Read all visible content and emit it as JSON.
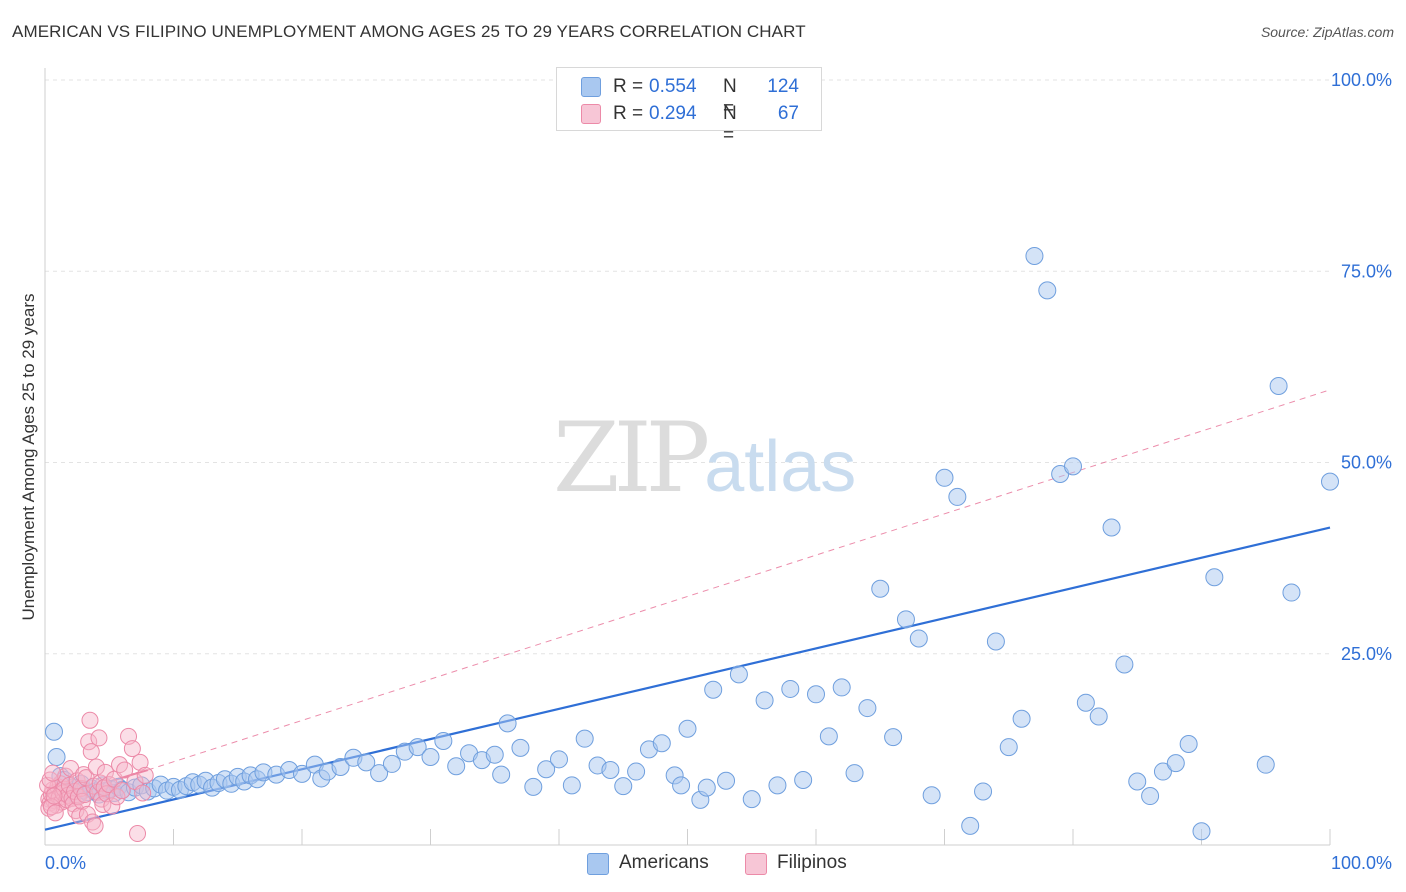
{
  "header": {
    "title": "AMERICAN VS FILIPINO UNEMPLOYMENT AMONG AGES 25 TO 29 YEARS CORRELATION CHART",
    "source": "Source: ZipAtlas.com"
  },
  "watermark": {
    "zip": "ZIP",
    "atlas": "atlas"
  },
  "stats_legend": {
    "rows": [
      {
        "r_label": "R =",
        "r_value": "0.554",
        "n_label": "N =",
        "n_value": "124"
      },
      {
        "r_label": "R =",
        "r_value": "0.294",
        "n_label": "N =",
        "n_value": "67"
      }
    ]
  },
  "colors": {
    "americans_fill": "#a9c8f0",
    "americans_stroke": "#6f9fde",
    "americans_line": "#2f6fd6",
    "filipinos_fill": "#f7b6c9",
    "filipinos_stroke": "#ec8aa8",
    "filipinos_line": "#e45d88",
    "grid": "#e3e3e3",
    "tick_text": "#2f6fd6"
  },
  "chart_data": {
    "type": "scatter",
    "title": "AMERICAN VS FILIPINO UNEMPLOYMENT AMONG AGES 25 TO 29 YEARS CORRELATION CHART",
    "xlabel": "",
    "ylabel": "Unemployment Among Ages 25 to 29 years",
    "xlim": [
      0,
      100
    ],
    "ylim": [
      0,
      100
    ],
    "x_tick_labels": [
      "0.0%",
      "100.0%"
    ],
    "y_ticks": [
      25,
      50,
      75,
      100
    ],
    "y_tick_labels": [
      "25.0%",
      "50.0%",
      "75.0%",
      "100.0%"
    ],
    "grid": true,
    "legend_position": "bottom",
    "series": [
      {
        "name": "Americans",
        "r": 0.554,
        "n": 124,
        "trend": {
          "x": [
            0,
            100
          ],
          "y": [
            2.0,
            41.5
          ]
        },
        "points": [
          [
            0.7,
            14.8
          ],
          [
            0.9,
            11.5
          ],
          [
            1.2,
            9.0
          ],
          [
            1.5,
            8.5
          ],
          [
            1.8,
            7.0
          ],
          [
            2.0,
            6.8
          ],
          [
            2.2,
            7.5
          ],
          [
            2.5,
            6.5
          ],
          [
            2.8,
            8.0
          ],
          [
            3.0,
            7.2
          ],
          [
            3.3,
            6.9
          ],
          [
            3.6,
            7.4
          ],
          [
            3.9,
            7.0
          ],
          [
            4.2,
            6.6
          ],
          [
            4.5,
            7.8
          ],
          [
            4.8,
            7.1
          ],
          [
            5.1,
            7.3
          ],
          [
            5.4,
            6.8
          ],
          [
            5.7,
            7.6
          ],
          [
            6.0,
            7.2
          ],
          [
            6.5,
            6.9
          ],
          [
            7.0,
            7.5
          ],
          [
            7.5,
            7.8
          ],
          [
            8.0,
            7.0
          ],
          [
            8.5,
            7.4
          ],
          [
            9.0,
            7.9
          ],
          [
            9.5,
            7.1
          ],
          [
            10.0,
            7.6
          ],
          [
            10.5,
            7.2
          ],
          [
            11.0,
            7.7
          ],
          [
            11.5,
            8.2
          ],
          [
            12.0,
            7.9
          ],
          [
            12.5,
            8.4
          ],
          [
            13.0,
            7.5
          ],
          [
            13.5,
            8.1
          ],
          [
            14.0,
            8.6
          ],
          [
            14.5,
            8.0
          ],
          [
            15.0,
            8.9
          ],
          [
            15.5,
            8.3
          ],
          [
            16.0,
            9.1
          ],
          [
            16.5,
            8.6
          ],
          [
            17.0,
            9.5
          ],
          [
            18.0,
            9.2
          ],
          [
            19.0,
            9.8
          ],
          [
            20.0,
            9.3
          ],
          [
            21.0,
            10.5
          ],
          [
            21.5,
            8.7
          ],
          [
            22.0,
            9.6
          ],
          [
            23.0,
            10.2
          ],
          [
            24.0,
            11.4
          ],
          [
            25.0,
            10.8
          ],
          [
            26.0,
            9.4
          ],
          [
            27.0,
            10.6
          ],
          [
            28.0,
            12.2
          ],
          [
            29.0,
            12.8
          ],
          [
            30.0,
            11.5
          ],
          [
            31.0,
            13.6
          ],
          [
            32.0,
            10.3
          ],
          [
            33.0,
            12.0
          ],
          [
            34.0,
            11.1
          ],
          [
            35.0,
            11.8
          ],
          [
            35.5,
            9.2
          ],
          [
            36.0,
            15.9
          ],
          [
            37.0,
            12.7
          ],
          [
            38.0,
            7.6
          ],
          [
            39.0,
            9.9
          ],
          [
            40.0,
            11.2
          ],
          [
            41.0,
            7.8
          ],
          [
            42.0,
            13.9
          ],
          [
            43.0,
            10.4
          ],
          [
            44.0,
            9.8
          ],
          [
            45.0,
            7.7
          ],
          [
            46.0,
            9.6
          ],
          [
            47.0,
            12.5
          ],
          [
            48.0,
            13.3
          ],
          [
            49.0,
            9.1
          ],
          [
            49.5,
            7.8
          ],
          [
            50.0,
            15.2
          ],
          [
            51.0,
            5.9
          ],
          [
            51.5,
            7.5
          ],
          [
            52.0,
            20.3
          ],
          [
            53.0,
            8.4
          ],
          [
            54.0,
            22.3
          ],
          [
            55.0,
            6.0
          ],
          [
            56.0,
            18.9
          ],
          [
            57.0,
            7.8
          ],
          [
            58.0,
            20.4
          ],
          [
            59.0,
            8.5
          ],
          [
            60.0,
            19.7
          ],
          [
            61.0,
            14.2
          ],
          [
            62.0,
            20.6
          ],
          [
            63.0,
            9.4
          ],
          [
            64.0,
            17.9
          ],
          [
            65.0,
            33.5
          ],
          [
            66.0,
            14.1
          ],
          [
            67.0,
            29.5
          ],
          [
            68.0,
            27.0
          ],
          [
            69.0,
            6.5
          ],
          [
            70.0,
            48.0
          ],
          [
            71.0,
            45.5
          ],
          [
            72.0,
            2.5
          ],
          [
            73.0,
            7.0
          ],
          [
            74.0,
            26.6
          ],
          [
            75.0,
            12.8
          ],
          [
            76.0,
            16.5
          ],
          [
            77.0,
            77.0
          ],
          [
            78.0,
            72.5
          ],
          [
            79.0,
            48.5
          ],
          [
            80.0,
            49.5
          ],
          [
            81.0,
            18.6
          ],
          [
            82.0,
            16.8
          ],
          [
            83.0,
            41.5
          ],
          [
            84.0,
            23.6
          ],
          [
            85.0,
            8.3
          ],
          [
            86.0,
            6.4
          ],
          [
            87.0,
            9.6
          ],
          [
            88.0,
            10.7
          ],
          [
            89.0,
            13.2
          ],
          [
            90.0,
            1.8
          ],
          [
            91.0,
            35.0
          ],
          [
            95.0,
            10.5
          ],
          [
            96.0,
            60.0
          ],
          [
            97.0,
            33.0
          ],
          [
            100.0,
            47.5
          ]
        ]
      },
      {
        "name": "Filipinos",
        "r": 0.294,
        "n": 67,
        "trend": {
          "x": [
            0,
            8
          ],
          "y": [
            5.8,
            9.8
          ]
        },
        "dashed_extension": {
          "x": [
            8,
            100
          ],
          "y": [
            9.8,
            59.5
          ]
        },
        "points": [
          [
            0.3,
            6.0
          ],
          [
            0.4,
            5.5
          ],
          [
            0.5,
            6.6
          ],
          [
            0.6,
            7.2
          ],
          [
            0.7,
            5.8
          ],
          [
            0.8,
            6.9
          ],
          [
            0.9,
            5.2
          ],
          [
            1.0,
            7.6
          ],
          [
            1.1,
            6.2
          ],
          [
            1.2,
            8.0
          ],
          [
            1.3,
            5.6
          ],
          [
            1.4,
            6.8
          ],
          [
            1.5,
            7.3
          ],
          [
            1.6,
            9.0
          ],
          [
            1.7,
            5.9
          ],
          [
            1.8,
            6.5
          ],
          [
            1.9,
            7.8
          ],
          [
            2.0,
            10.0
          ],
          [
            2.1,
            6.1
          ],
          [
            2.2,
            5.4
          ],
          [
            2.3,
            7.0
          ],
          [
            2.4,
            4.5
          ],
          [
            2.5,
            8.4
          ],
          [
            2.6,
            6.3
          ],
          [
            2.7,
            3.8
          ],
          [
            2.8,
            7.4
          ],
          [
            2.9,
            5.7
          ],
          [
            3.0,
            9.2
          ],
          [
            3.1,
            6.6
          ],
          [
            3.2,
            8.8
          ],
          [
            3.3,
            4.0
          ],
          [
            3.4,
            13.5
          ],
          [
            3.5,
            16.3
          ],
          [
            3.6,
            12.2
          ],
          [
            3.7,
            3.0
          ],
          [
            3.8,
            7.7
          ],
          [
            3.9,
            2.5
          ],
          [
            4.0,
            10.2
          ],
          [
            4.1,
            6.9
          ],
          [
            4.2,
            14.0
          ],
          [
            4.3,
            8.1
          ],
          [
            4.4,
            6.0
          ],
          [
            4.5,
            5.3
          ],
          [
            4.6,
            7.5
          ],
          [
            4.7,
            9.5
          ],
          [
            4.8,
            6.7
          ],
          [
            5.0,
            7.9
          ],
          [
            5.2,
            5.1
          ],
          [
            5.4,
            8.6
          ],
          [
            5.6,
            6.3
          ],
          [
            5.8,
            10.5
          ],
          [
            6.0,
            7.1
          ],
          [
            6.2,
            9.8
          ],
          [
            6.5,
            14.2
          ],
          [
            6.8,
            12.6
          ],
          [
            7.0,
            8.3
          ],
          [
            7.2,
            1.5
          ],
          [
            7.4,
            10.8
          ],
          [
            7.6,
            6.8
          ],
          [
            7.8,
            9.1
          ],
          [
            0.2,
            7.8
          ],
          [
            0.3,
            4.8
          ],
          [
            0.4,
            8.5
          ],
          [
            0.5,
            5.0
          ],
          [
            0.6,
            9.4
          ],
          [
            0.7,
            6.4
          ],
          [
            0.8,
            4.2
          ]
        ]
      }
    ]
  },
  "legend": {
    "items": [
      "Americans",
      "Filipinos"
    ]
  }
}
